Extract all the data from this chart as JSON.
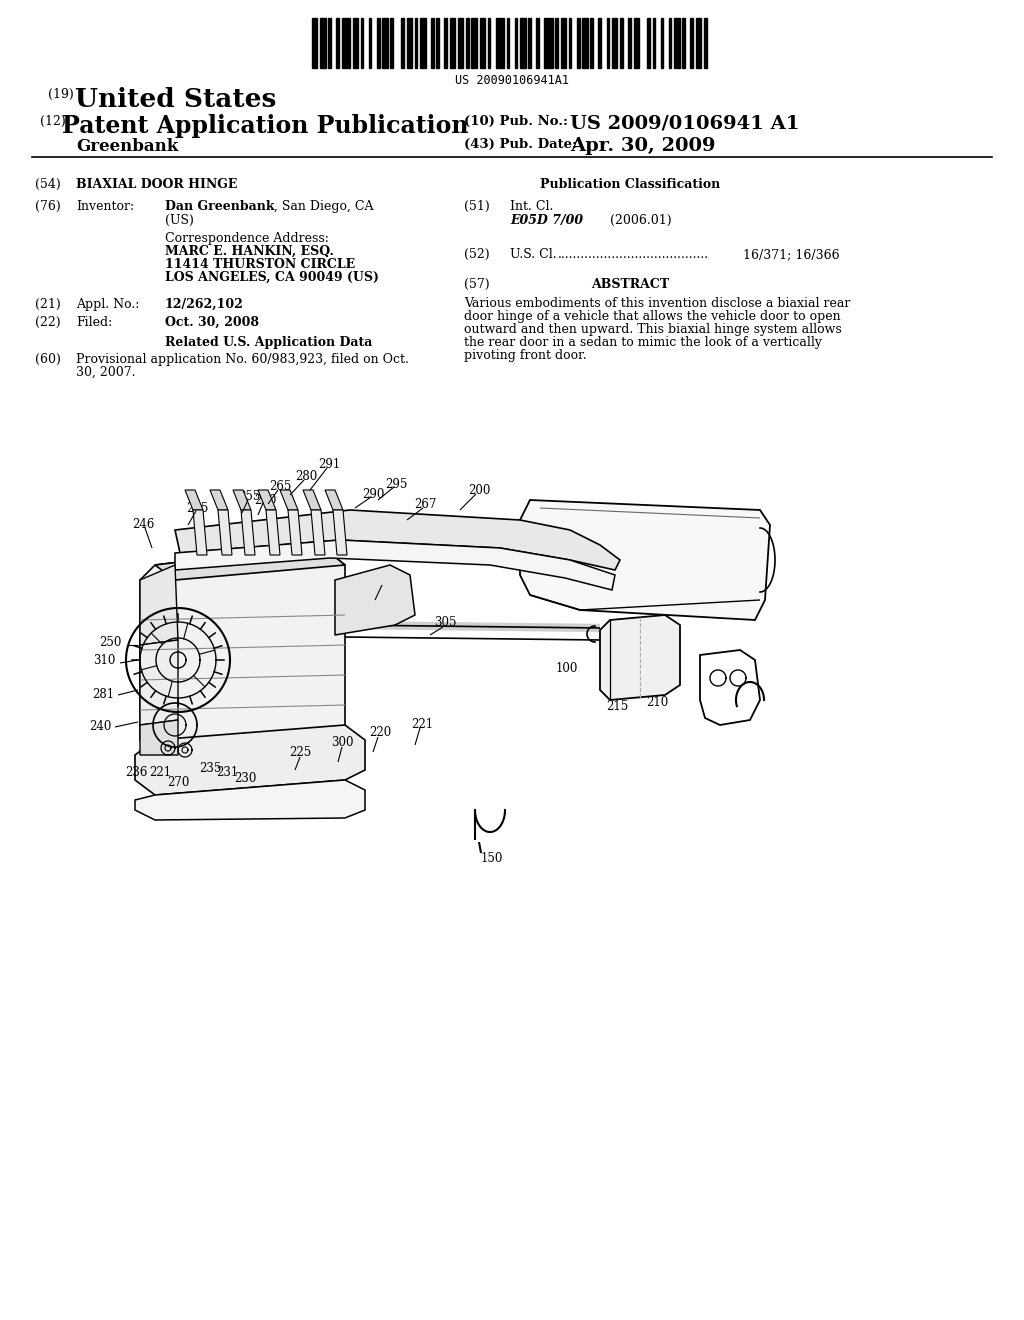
{
  "background_color": "#ffffff",
  "barcode_text": "US 20090106941A1",
  "title_line1_prefix": "(19)",
  "title_line1": "United States",
  "title_line2_prefix": "(12)",
  "title_line2": "Patent Application Publication",
  "inventor_last": "Greenbank",
  "pub_no_prefix": "(10) Pub. No.:",
  "pub_no": "US 2009/0106941 A1",
  "pub_date_prefix": "(43) Pub. Date:",
  "pub_date": "Apr. 30, 2009",
  "f54_label": "(54)",
  "f54_val": "BIAXIAL DOOR HINGE",
  "f76_label": "(76)",
  "f76_key": "Inventor:",
  "f76_bold": "Dan Greenbank",
  "f76_rest": ", San Diego, CA",
  "f76_line2": "(US)",
  "corr_hdr": "Correspondence Address:",
  "corr_1": "MARC E. HANKIN, ESQ.",
  "corr_2": "11414 THURSTON CIRCLE",
  "corr_3": "LOS ANGELES, CA 90049 (US)",
  "f21_label": "(21)",
  "f21_key": "Appl. No.:",
  "f21_val": "12/262,102",
  "f22_label": "(22)",
  "f22_key": "Filed:",
  "f22_val": "Oct. 30, 2008",
  "related_hdr": "Related U.S. Application Data",
  "f60_label": "(60)",
  "f60_val_1": "Provisional application No. 60/983,923, filed on Oct.",
  "f60_val_2": "30, 2007.",
  "pub_class_hdr": "Publication Classification",
  "f51_label": "(51)",
  "f51_key": "Int. Cl.",
  "f51_val": "E05D 7/00",
  "f51_year": "(2006.01)",
  "f52_label": "(52)",
  "f52_key": "U.S. Cl.",
  "f52_dots": ".......................................",
  "f52_val": "16/371; 16/366",
  "f57_label": "(57)",
  "f57_hdr": "ABSTRACT",
  "abstract_lines": [
    "Various embodiments of this invention disclose a biaxial rear",
    "door hinge of a vehicle that allows the vehicle door to open",
    "outward and then upward. This biaxial hinge system allows",
    "the rear door in a sedan to mimic the look of a vertically",
    "pivoting front door."
  ]
}
